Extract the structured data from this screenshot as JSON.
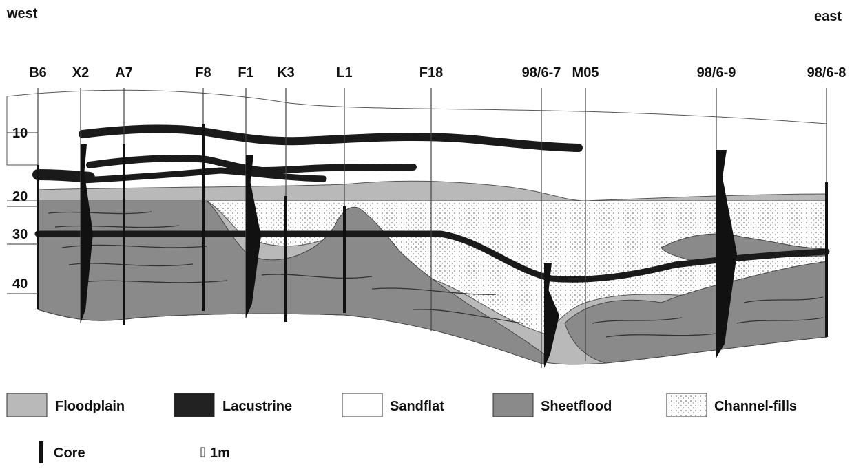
{
  "header": {
    "west": "west",
    "east": "east"
  },
  "wells": [
    "B6",
    "X2",
    "A7",
    "F8",
    "F1",
    "K3",
    "L1",
    "F18",
    "98/6-7",
    "M05",
    "98/6-9",
    "98/6-8"
  ],
  "depths": [
    10,
    20,
    30,
    40
  ],
  "legend": {
    "facies": [
      "Floodplain",
      "Lacustrine",
      "Sandflat",
      "Sheetflood",
      "Channel-fills"
    ],
    "core": "Core",
    "scale": "1m"
  }
}
